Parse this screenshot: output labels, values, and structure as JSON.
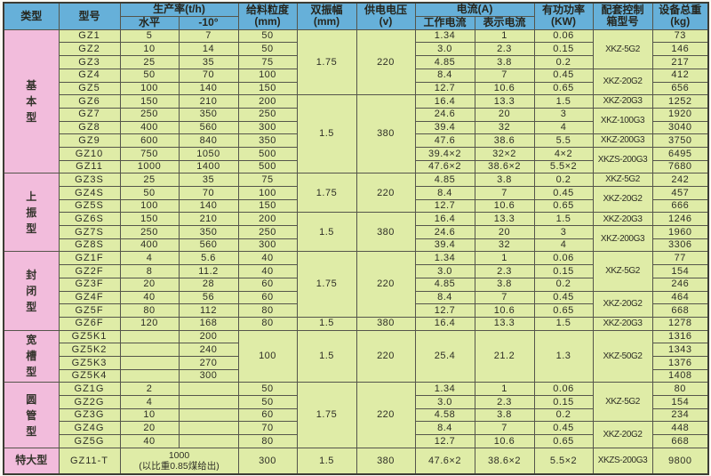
{
  "colors": {
    "header_bg": "#66b0d9",
    "category_bg": "#f2bcdc",
    "cell_bg": "#dfeca7",
    "border": "#55554b"
  },
  "header": {
    "type": "类型",
    "model": "型号",
    "production": "生产率(t/h)",
    "horizontal": "水平",
    "minus10": "-10°",
    "feed_size": "给料粒度\n(mm)",
    "amplitude": "双振幅\n(mm)",
    "voltage": "供电电压\n(v)",
    "current": "电流(A)",
    "working_current": "工作电流",
    "indicated_current": "表示电流",
    "active_power": "有功功率\n(KW)",
    "control_box": "配套控制\n箱型号",
    "total_weight": "设备总重\n(kg)"
  },
  "table": {
    "rows": [
      [
        {
          "v": "基本型",
          "rs": 11,
          "cat": true,
          "vert": true
        },
        {
          "v": "GZ1",
          "m": true
        },
        {
          "v": "5"
        },
        {
          "v": "7"
        },
        {
          "v": "50"
        },
        {
          "v": "1.75",
          "rs": 5
        },
        {
          "v": "220",
          "rs": 5
        },
        {
          "v": "1.34"
        },
        {
          "v": "1"
        },
        {
          "v": "0.06"
        },
        {
          "v": "XKZ-5G2",
          "rs": 3
        },
        {
          "v": "73"
        }
      ],
      [
        {
          "v": "GZ2",
          "m": true
        },
        {
          "v": "10"
        },
        {
          "v": "14"
        },
        {
          "v": "50"
        },
        {
          "v": "3.0"
        },
        {
          "v": "2.3"
        },
        {
          "v": "0.15"
        },
        {
          "v": "146"
        }
      ],
      [
        {
          "v": "GZ3",
          "m": true
        },
        {
          "v": "25"
        },
        {
          "v": "35"
        },
        {
          "v": "75"
        },
        {
          "v": "4.85"
        },
        {
          "v": "3.8"
        },
        {
          "v": "0.2"
        },
        {
          "v": "217"
        }
      ],
      [
        {
          "v": "GZ4",
          "m": true
        },
        {
          "v": "50"
        },
        {
          "v": "70"
        },
        {
          "v": "100"
        },
        {
          "v": "8.4"
        },
        {
          "v": "7"
        },
        {
          "v": "0.45"
        },
        {
          "v": "XKZ-20G2",
          "rs": 2
        },
        {
          "v": "412"
        }
      ],
      [
        {
          "v": "GZ5",
          "m": true
        },
        {
          "v": "100"
        },
        {
          "v": "140"
        },
        {
          "v": "150"
        },
        {
          "v": "12.7"
        },
        {
          "v": "10.6"
        },
        {
          "v": "0.65"
        },
        {
          "v": "656"
        }
      ],
      [
        {
          "v": "GZ6",
          "m": true
        },
        {
          "v": "150"
        },
        {
          "v": "210"
        },
        {
          "v": "200"
        },
        {
          "v": "1.5",
          "rs": 6
        },
        {
          "v": "380",
          "rs": 6
        },
        {
          "v": "16.4"
        },
        {
          "v": "13.3"
        },
        {
          "v": "1.5"
        },
        {
          "v": "XKZ-20G3"
        },
        {
          "v": "1252"
        }
      ],
      [
        {
          "v": "GZ7",
          "m": true
        },
        {
          "v": "250"
        },
        {
          "v": "350"
        },
        {
          "v": "250"
        },
        {
          "v": "24.6"
        },
        {
          "v": "20"
        },
        {
          "v": "3"
        },
        {
          "v": "XKZ-100G3",
          "rs": 2
        },
        {
          "v": "1920"
        }
      ],
      [
        {
          "v": "GZ8",
          "m": true
        },
        {
          "v": "400"
        },
        {
          "v": "560"
        },
        {
          "v": "300"
        },
        {
          "v": "39.4"
        },
        {
          "v": "32"
        },
        {
          "v": "4"
        },
        {
          "v": "3040"
        }
      ],
      [
        {
          "v": "GZ9",
          "m": true
        },
        {
          "v": "600"
        },
        {
          "v": "840"
        },
        {
          "v": "350"
        },
        {
          "v": "47.6"
        },
        {
          "v": "38.6"
        },
        {
          "v": "5.5"
        },
        {
          "v": "XKZ-200G3"
        },
        {
          "v": "3750"
        }
      ],
      [
        {
          "v": "GZ10",
          "m": true
        },
        {
          "v": "750"
        },
        {
          "v": "1050"
        },
        {
          "v": "500"
        },
        {
          "v": "39.4×2"
        },
        {
          "v": "32×2"
        },
        {
          "v": "4×2"
        },
        {
          "v": "XKZS-200G3",
          "rs": 2
        },
        {
          "v": "6495"
        }
      ],
      [
        {
          "v": "GZ11",
          "m": true
        },
        {
          "v": "1000"
        },
        {
          "v": "1400"
        },
        {
          "v": "500"
        },
        {
          "v": "47.6×2"
        },
        {
          "v": "38.6×2"
        },
        {
          "v": "5.5×2"
        },
        {
          "v": "7680"
        }
      ],
      [
        {
          "v": "上振型",
          "rs": 6,
          "cat": true,
          "vert": true
        },
        {
          "v": "GZ3S",
          "m": true
        },
        {
          "v": "25"
        },
        {
          "v": "35"
        },
        {
          "v": "75"
        },
        {
          "v": "1.75",
          "rs": 3
        },
        {
          "v": "220",
          "rs": 3
        },
        {
          "v": "4.85"
        },
        {
          "v": "3.8"
        },
        {
          "v": "0.2"
        },
        {
          "v": "XKZ-5G2"
        },
        {
          "v": "242"
        }
      ],
      [
        {
          "v": "GZ4S",
          "m": true
        },
        {
          "v": "50"
        },
        {
          "v": "70"
        },
        {
          "v": "100"
        },
        {
          "v": "8.4"
        },
        {
          "v": "7"
        },
        {
          "v": "0.45"
        },
        {
          "v": "XKZ-20G2",
          "rs": 2
        },
        {
          "v": "457"
        }
      ],
      [
        {
          "v": "GZ5S",
          "m": true
        },
        {
          "v": "100"
        },
        {
          "v": "140"
        },
        {
          "v": "150"
        },
        {
          "v": "12.7"
        },
        {
          "v": "10.6"
        },
        {
          "v": "0.65"
        },
        {
          "v": "666"
        }
      ],
      [
        {
          "v": "GZ6S",
          "m": true
        },
        {
          "v": "150"
        },
        {
          "v": "210"
        },
        {
          "v": "200"
        },
        {
          "v": "1.5",
          "rs": 3
        },
        {
          "v": "380",
          "rs": 3
        },
        {
          "v": "16.4"
        },
        {
          "v": "13.3"
        },
        {
          "v": "1.5"
        },
        {
          "v": "XKZ-20G3"
        },
        {
          "v": "1246"
        }
      ],
      [
        {
          "v": "GZ7S",
          "m": true
        },
        {
          "v": "250"
        },
        {
          "v": "350"
        },
        {
          "v": "250"
        },
        {
          "v": "24.6"
        },
        {
          "v": "20"
        },
        {
          "v": "3"
        },
        {
          "v": "XKZ-200G3",
          "rs": 2
        },
        {
          "v": "1960"
        }
      ],
      [
        {
          "v": "GZ8S",
          "m": true
        },
        {
          "v": "400"
        },
        {
          "v": "560"
        },
        {
          "v": "300"
        },
        {
          "v": "39.4"
        },
        {
          "v": "32"
        },
        {
          "v": "4"
        },
        {
          "v": "3306"
        }
      ],
      [
        {
          "v": "封闭型",
          "rs": 6,
          "cat": true,
          "vert": true
        },
        {
          "v": "GZ1F",
          "m": true
        },
        {
          "v": "4"
        },
        {
          "v": "5.6"
        },
        {
          "v": "40"
        },
        {
          "v": "1.75",
          "rs": 5
        },
        {
          "v": "220",
          "rs": 5
        },
        {
          "v": "1.34"
        },
        {
          "v": "1"
        },
        {
          "v": "0.06"
        },
        {
          "v": "XKZ-5G2",
          "rs": 3
        },
        {
          "v": "77"
        }
      ],
      [
        {
          "v": "GZ2F",
          "m": true
        },
        {
          "v": "8"
        },
        {
          "v": "11.2"
        },
        {
          "v": "40"
        },
        {
          "v": "3.0"
        },
        {
          "v": "2.3"
        },
        {
          "v": "0.15"
        },
        {
          "v": "154"
        }
      ],
      [
        {
          "v": "GZ3F",
          "m": true
        },
        {
          "v": "20"
        },
        {
          "v": "28"
        },
        {
          "v": "60"
        },
        {
          "v": "4.85"
        },
        {
          "v": "3.8"
        },
        {
          "v": "0.2"
        },
        {
          "v": "246"
        }
      ],
      [
        {
          "v": "GZ4F",
          "m": true
        },
        {
          "v": "40"
        },
        {
          "v": "56"
        },
        {
          "v": "60"
        },
        {
          "v": "8.4"
        },
        {
          "v": "7"
        },
        {
          "v": "0.45"
        },
        {
          "v": "XKZ-20G2",
          "rs": 2
        },
        {
          "v": "464"
        }
      ],
      [
        {
          "v": "GZ5F",
          "m": true
        },
        {
          "v": "80"
        },
        {
          "v": "112"
        },
        {
          "v": "80"
        },
        {
          "v": "12.7"
        },
        {
          "v": "10.6"
        },
        {
          "v": "0.65"
        },
        {
          "v": "668"
        }
      ],
      [
        {
          "v": "GZ6F",
          "m": true
        },
        {
          "v": "120"
        },
        {
          "v": "168"
        },
        {
          "v": "80"
        },
        {
          "v": "1.5"
        },
        {
          "v": "380"
        },
        {
          "v": "16.4"
        },
        {
          "v": "13.3"
        },
        {
          "v": "1.5"
        },
        {
          "v": "XKZ-20G3"
        },
        {
          "v": "1278"
        }
      ],
      [
        {
          "v": "宽槽型",
          "rs": 4,
          "cat": true,
          "vert": true
        },
        {
          "v": "GZ5K1",
          "m": true
        },
        {
          "v": ""
        },
        {
          "v": "200"
        },
        {
          "v": "100",
          "rs": 4
        },
        {
          "v": "1.5",
          "rs": 4
        },
        {
          "v": "220",
          "rs": 4
        },
        {
          "v": "25.4",
          "rs": 4
        },
        {
          "v": "21.2",
          "rs": 4
        },
        {
          "v": "1.3",
          "rs": 4
        },
        {
          "v": "XKZ-50G2",
          "rs": 4
        },
        {
          "v": "1316"
        }
      ],
      [
        {
          "v": "GZ5K2",
          "m": true
        },
        {
          "v": ""
        },
        {
          "v": "240"
        },
        {
          "v": "1343"
        }
      ],
      [
        {
          "v": "GZ5K3",
          "m": true
        },
        {
          "v": ""
        },
        {
          "v": "270"
        },
        {
          "v": "1376"
        }
      ],
      [
        {
          "v": "GZ5K4",
          "m": true
        },
        {
          "v": ""
        },
        {
          "v": "300"
        },
        {
          "v": "1408"
        }
      ],
      [
        {
          "v": "圆管型",
          "rs": 5,
          "cat": true,
          "vert": true
        },
        {
          "v": "GZ1G",
          "m": true
        },
        {
          "v": "2"
        },
        {
          "v": ""
        },
        {
          "v": "50"
        },
        {
          "v": "1.75",
          "rs": 5
        },
        {
          "v": "220",
          "rs": 5
        },
        {
          "v": "1.34"
        },
        {
          "v": "1"
        },
        {
          "v": "0.06"
        },
        {
          "v": "XKZ-5G2",
          "rs": 3
        },
        {
          "v": "80"
        }
      ],
      [
        {
          "v": "GZ2G",
          "m": true
        },
        {
          "v": "4"
        },
        {
          "v": ""
        },
        {
          "v": "50"
        },
        {
          "v": "3.0"
        },
        {
          "v": "2.3"
        },
        {
          "v": "0.15"
        },
        {
          "v": "154"
        }
      ],
      [
        {
          "v": "GZ3G",
          "m": true
        },
        {
          "v": "10"
        },
        {
          "v": ""
        },
        {
          "v": "60"
        },
        {
          "v": "4.58"
        },
        {
          "v": "3.8"
        },
        {
          "v": "0.2"
        },
        {
          "v": "234"
        }
      ],
      [
        {
          "v": "GZ4G",
          "m": true
        },
        {
          "v": "20"
        },
        {
          "v": ""
        },
        {
          "v": "70"
        },
        {
          "v": "8.4"
        },
        {
          "v": "7"
        },
        {
          "v": "0.45"
        },
        {
          "v": "XKZ-20G2",
          "rs": 2
        },
        {
          "v": "448"
        }
      ],
      [
        {
          "v": "GZ5G",
          "m": true
        },
        {
          "v": "40"
        },
        {
          "v": ""
        },
        {
          "v": "80"
        },
        {
          "v": "12.7"
        },
        {
          "v": "10.6"
        },
        {
          "v": "0.65"
        },
        {
          "v": "668"
        }
      ],
      [
        {
          "v": "特大型",
          "cat": true
        },
        {
          "v": "GZ11-T",
          "m": true
        },
        {
          "v": "1000\n(以比重0.85煤给出)",
          "cs": 2
        },
        {
          "v": "300"
        },
        {
          "v": "1.5"
        },
        {
          "v": "380"
        },
        {
          "v": "47.6×2"
        },
        {
          "v": "38.6×2"
        },
        {
          "v": "5.5×2"
        },
        {
          "v": "XKZS-200G3"
        },
        {
          "v": "9800"
        }
      ]
    ]
  }
}
